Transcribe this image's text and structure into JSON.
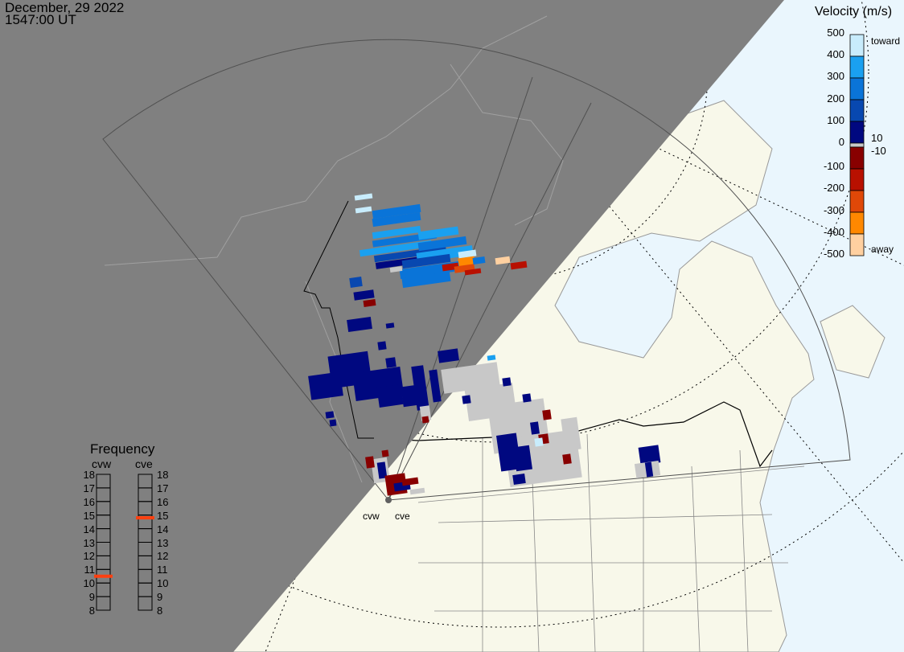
{
  "header": {
    "date": "December, 29 2022",
    "time": "1547:00 UT"
  },
  "colorbar": {
    "title": "Velocity (m/s)",
    "ticks": [
      "500",
      "400",
      "300",
      "200",
      "100",
      "0",
      "-100",
      "-200",
      "-300",
      "-400",
      "-500"
    ],
    "toward_label": "toward",
    "away_label": "away",
    "gray_upper": "10",
    "gray_lower": "-10",
    "colors": {
      "v500": "#c8ecfc",
      "v400": "#1aa0f0",
      "v300": "#0a74d8",
      "v200": "#0848b0",
      "v100": "#000880",
      "ground_scatter": "#c8c8c8",
      "vm100": "#880000",
      "vm200": "#b81000",
      "vm300": "#e04808",
      "vm400": "#ff8800",
      "vm500": "#ffd0a0"
    }
  },
  "frequency": {
    "title": "Frequency",
    "radars": [
      {
        "name": "cvw",
        "value_mhz": 10.5
      },
      {
        "name": "cve",
        "value_mhz": 14.8
      }
    ],
    "ticks": [
      "18",
      "17",
      "16",
      "15",
      "14",
      "13",
      "12",
      "11",
      "10",
      "9",
      "8"
    ],
    "marker_color": "#ff4010"
  },
  "map": {
    "night_color": "#808080",
    "ocean_color": "#eaf6fd",
    "land_color": "#f8f8ea",
    "radar_labels": [
      "cvw",
      "cve"
    ]
  }
}
